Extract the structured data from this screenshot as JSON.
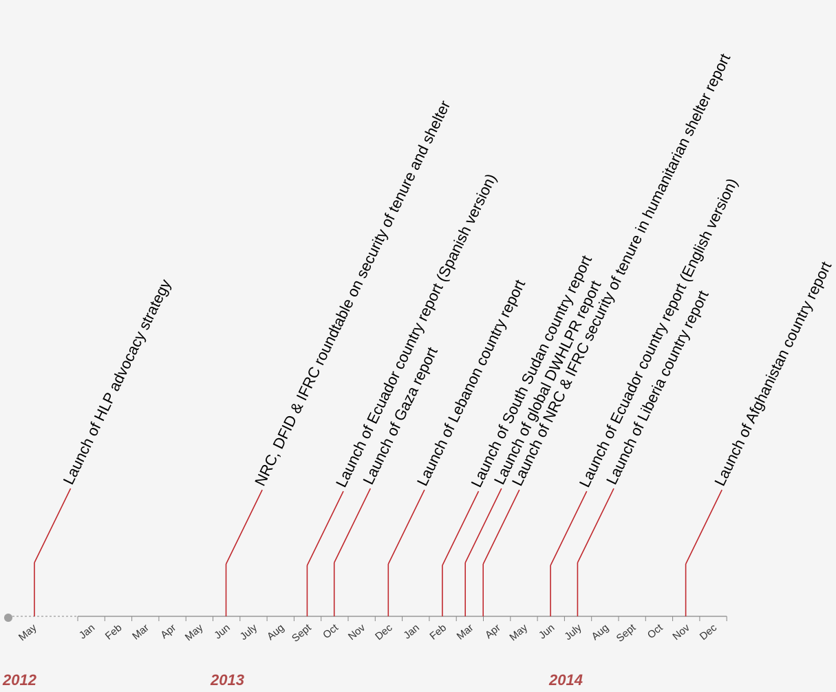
{
  "chart_data": {
    "type": "timeline",
    "title": "",
    "colors": {
      "event": "#c0282d",
      "axis": "#888888",
      "year": "#b04a4a",
      "start_marker": "#a0a0a0"
    },
    "years": [
      "2012",
      "2013",
      "2014"
    ],
    "months_2012": [
      "May"
    ],
    "months_2013": [
      "Jan",
      "Feb",
      "Mar",
      "Apr",
      "May",
      "Jun",
      "July",
      "Aug",
      "Sept",
      "Oct",
      "Nov",
      "Dec"
    ],
    "months_2014": [
      "Jan",
      "Feb",
      "Mar",
      "Apr",
      "May",
      "Jun",
      "July",
      "Aug",
      "Sept",
      "Oct",
      "Nov",
      "Dec"
    ],
    "events": [
      {
        "date": "2012-05",
        "label": "Launch of HLP advocacy strategy"
      },
      {
        "date": "2013-06",
        "label": "NRC, DFID & IFRC roundtable on security of tenure and shelter"
      },
      {
        "date": "2013-09",
        "label": "Launch of Ecuador country report (Spanish version)"
      },
      {
        "date": "2013-10",
        "label": "Launch of Gaza report"
      },
      {
        "date": "2013-12",
        "label": "Launch of Lebanon country report"
      },
      {
        "date": "2014-02",
        "label": "Launch of South Sudan country report"
      },
      {
        "date": "2014-03",
        "label": "Launch of global DWHLPR report"
      },
      {
        "date": "2014-03",
        "label": "Launch of NRC & IFRC security of tenure in humanitarian shelter report"
      },
      {
        "date": "2014-06",
        "label": "Launch of Ecuador country report (English version)"
      },
      {
        "date": "2014-07",
        "label": "Launch of Liberia country report"
      },
      {
        "date": "2014-11",
        "label": "Launch of Afghanistan country report"
      }
    ]
  }
}
